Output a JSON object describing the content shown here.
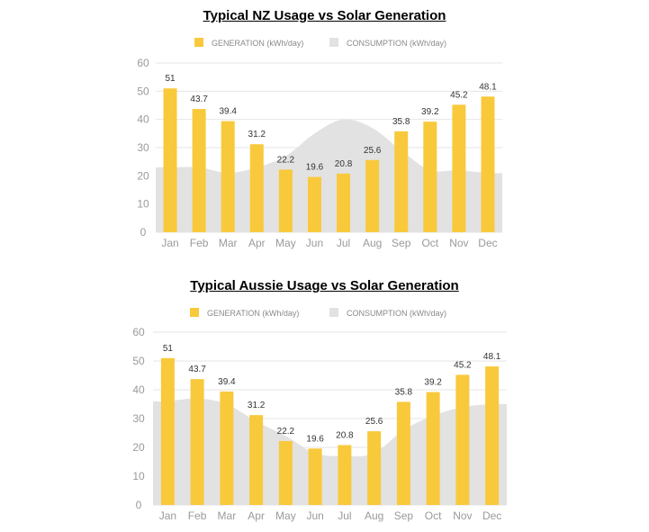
{
  "chart_data": [
    {
      "type": "bar",
      "title": "Typical NZ Usage vs Solar Generation",
      "categories": [
        "Jan",
        "Feb",
        "Mar",
        "Apr",
        "May",
        "Jun",
        "Jul",
        "Aug",
        "Sep",
        "Oct",
        "Nov",
        "Dec"
      ],
      "series": [
        {
          "name": "GENERATION (kWh/day)",
          "kind": "bar",
          "color": "#F9C93C",
          "values": [
            51,
            43.7,
            39.4,
            31.2,
            22.2,
            19.6,
            20.8,
            25.6,
            35.8,
            39.2,
            45.2,
            48.1
          ]
        },
        {
          "name": "CONSUMPTION (kWh/day)",
          "kind": "area",
          "color": "#E2E2E2",
          "values": [
            23,
            23,
            21,
            23,
            27,
            35,
            40,
            37,
            29,
            22,
            22,
            21
          ]
        }
      ],
      "value_labels": [
        "51",
        "43.7",
        "39.4",
        "31.2",
        "22.2",
        "19.6",
        "20.8",
        "25.6",
        "35.8",
        "39.2",
        "45.2",
        "48.1"
      ],
      "y_ticks": [
        "0",
        "10",
        "20",
        "30",
        "40",
        "50",
        "60"
      ],
      "ylim": [
        0,
        60
      ],
      "grid": true,
      "legend": "top"
    },
    {
      "type": "bar",
      "title": "Typical Aussie Usage vs Solar Generation",
      "categories": [
        "Jan",
        "Feb",
        "Mar",
        "Apr",
        "May",
        "Jun",
        "Jul",
        "Aug",
        "Sep",
        "Oct",
        "Nov",
        "Dec"
      ],
      "series": [
        {
          "name": "GENERATION (kWh/day)",
          "kind": "bar",
          "color": "#F9C93C",
          "values": [
            51,
            43.7,
            39.4,
            31.2,
            22.2,
            19.6,
            20.8,
            25.6,
            35.8,
            39.2,
            45.2,
            48.1
          ]
        },
        {
          "name": "CONSUMPTION (kWh/day)",
          "kind": "area",
          "color": "#E2E2E2",
          "values": [
            36,
            37,
            35,
            29,
            24,
            18,
            17,
            18,
            26,
            31,
            34,
            35
          ]
        }
      ],
      "value_labels": [
        "51",
        "43.7",
        "39.4",
        "31.2",
        "22.2",
        "19.6",
        "20.8",
        "25.6",
        "35.8",
        "39.2",
        "45.2",
        "48.1"
      ],
      "y_ticks": [
        "0",
        "10",
        "20",
        "30",
        "40",
        "50",
        "60"
      ],
      "ylim": [
        0,
        60
      ],
      "grid": true,
      "legend": "top"
    }
  ]
}
